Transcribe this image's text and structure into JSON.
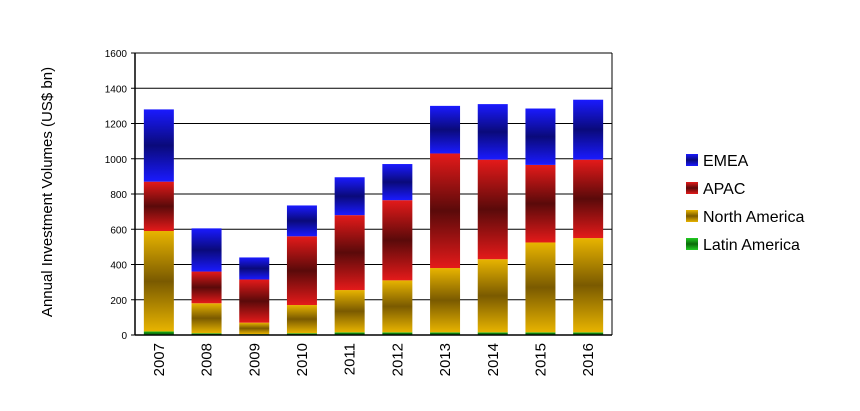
{
  "chart_data": {
    "type": "bar",
    "stacked": true,
    "title": "",
    "xlabel": "",
    "ylabel": "Annual Investment Volumes (US$ bn)",
    "ylim": [
      0,
      1600
    ],
    "yticks": [
      0,
      200,
      400,
      600,
      800,
      1000,
      1200,
      1400,
      1600
    ],
    "grid": true,
    "legend_position": "right",
    "categories": [
      "2007",
      "2008",
      "2009",
      "2010",
      "2011",
      "2012",
      "2013",
      "2014",
      "2015",
      "2016"
    ],
    "series": [
      {
        "name": "Latin America",
        "color": "#22cc22",
        "values": [
          20,
          10,
          5,
          10,
          15,
          15,
          15,
          15,
          15,
          15
        ]
      },
      {
        "name": "North America",
        "color": "#e8b400",
        "values": [
          570,
          170,
          65,
          160,
          240,
          295,
          365,
          415,
          510,
          535
        ]
      },
      {
        "name": "APAC",
        "color": "#e41a1a",
        "values": [
          280,
          180,
          245,
          390,
          425,
          455,
          650,
          565,
          440,
          445
        ]
      },
      {
        "name": "EMEA",
        "color": "#1a1aff",
        "values": [
          410,
          245,
          125,
          175,
          215,
          205,
          270,
          315,
          320,
          340
        ]
      }
    ],
    "legend_order": [
      "EMEA",
      "APAC",
      "North America",
      "Latin America"
    ]
  }
}
